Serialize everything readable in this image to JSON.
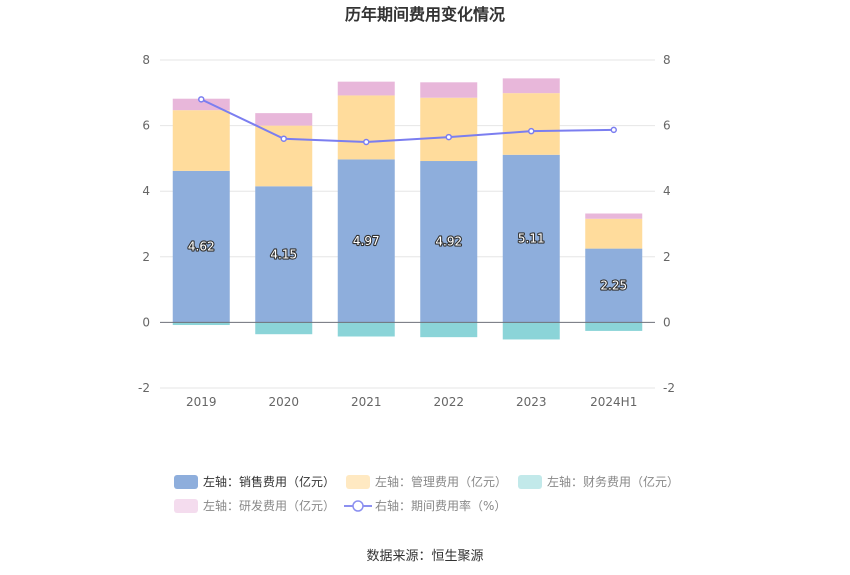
{
  "chart_data": {
    "type": "bar",
    "title": "历年期间费用变化情况",
    "categories": [
      "2019",
      "2020",
      "2021",
      "2022",
      "2023",
      "2024H1"
    ],
    "left_axis": {
      "min": -2,
      "max": 8,
      "ticks": [
        "-2",
        "0",
        "2",
        "4",
        "6",
        "8"
      ]
    },
    "right_axis": {
      "min": -2,
      "max": 8,
      "ticks": [
        "-2",
        "0",
        "2",
        "4",
        "6",
        "8"
      ]
    },
    "series": [
      {
        "name": "左轴：销售费用（亿元）",
        "type": "bar",
        "stack": true,
        "color": "#8eaedc",
        "values": [
          4.62,
          4.15,
          4.97,
          4.92,
          5.11,
          2.25
        ],
        "labels": [
          "4.62",
          "4.15",
          "4.97",
          "4.92",
          "5.11",
          "2.25"
        ]
      },
      {
        "name": "左轴：管理费用（亿元）",
        "type": "bar",
        "stack": true,
        "color": "#ffdc9c",
        "values": [
          1.85,
          1.85,
          1.95,
          1.93,
          1.88,
          0.91
        ]
      },
      {
        "name": "左轴：财务费用（亿元）",
        "type": "bar",
        "stack": true,
        "color": "#8bd4d8",
        "values": [
          -0.08,
          -0.36,
          -0.43,
          -0.45,
          -0.52,
          -0.26
        ]
      },
      {
        "name": "左轴：研发费用（亿元）",
        "type": "bar",
        "stack": true,
        "color": "#e8b7da",
        "values": [
          0.35,
          0.38,
          0.42,
          0.47,
          0.45,
          0.16
        ]
      },
      {
        "name": "右轴：期间费用率（%）",
        "type": "line",
        "axis": "right",
        "color": "#7b7ef0",
        "values": [
          6.8,
          5.6,
          5.5,
          5.65,
          5.83,
          5.87
        ]
      }
    ],
    "legend": {
      "items": [
        {
          "label": "左轴：销售费用（亿元）",
          "color": "#8eaedc",
          "kind": "box",
          "active": true
        },
        {
          "label": "左轴：管理费用（亿元）",
          "color": "#ffe9c2",
          "kind": "box"
        },
        {
          "label": "左轴：财务费用（亿元）",
          "color": "#c2e9ea",
          "kind": "box"
        },
        {
          "label": "左轴：研发费用（亿元）",
          "color": "#f4dcee",
          "kind": "box"
        },
        {
          "label": "右轴：期间费用率（%）",
          "color": "#8c90f0",
          "kind": "line"
        }
      ],
      "position": "bottom"
    },
    "source": "数据来源：恒生聚源"
  }
}
